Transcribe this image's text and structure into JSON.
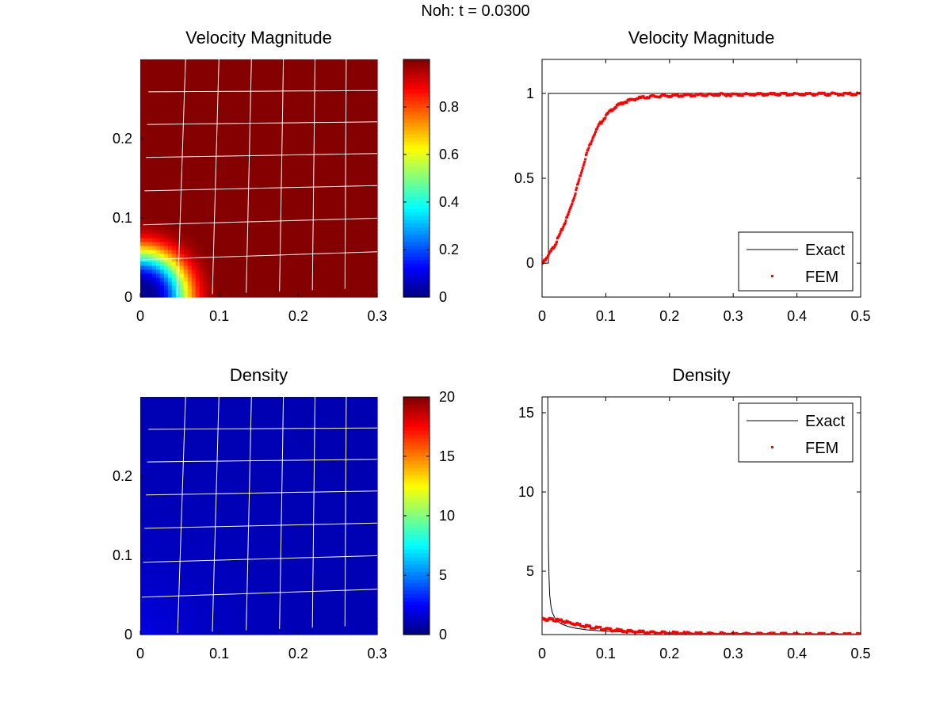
{
  "figure": {
    "suptitle": "Noh: t = 0.0300"
  },
  "colors": {
    "exact_line": "#000000",
    "fem_marker": "#ff0000",
    "mesh": "#ffffff",
    "background": "#ffffff"
  },
  "chart_data": [
    {
      "id": "vel-field",
      "type": "heatmap",
      "title": "Velocity Magnitude",
      "xlabel": "",
      "ylabel": "",
      "xlim": [
        0,
        0.3
      ],
      "ylim": [
        0,
        0.3
      ],
      "xticks": [
        "0",
        "0.1",
        "0.2",
        "0.3"
      ],
      "yticks": [
        "0",
        "0.1",
        "0.2"
      ],
      "colormap": "jet",
      "field": {
        "description_free": true,
        "center": [
          0,
          0
        ],
        "shock_radius": 0.01,
        "low_value": 0.0,
        "high_value": 1.0
      },
      "colorbar": {
        "range": [
          0,
          1
        ],
        "ticks": [
          "0",
          "0.2",
          "0.4",
          "0.6",
          "0.8"
        ]
      }
    },
    {
      "id": "vel-line",
      "type": "line",
      "title": "Velocity Magnitude",
      "xlabel": "",
      "ylabel": "",
      "xlim": [
        0,
        0.5
      ],
      "ylim": [
        -0.2,
        1.2
      ],
      "xticks": [
        "0",
        "0.1",
        "0.2",
        "0.3",
        "0.4",
        "0.5"
      ],
      "yticks": [
        "0",
        "0.5",
        "1"
      ],
      "legend": {
        "position": "bottom-right",
        "entries": [
          "Exact",
          "FEM"
        ]
      },
      "series": [
        {
          "name": "Exact",
          "style": "line",
          "x": [
            0,
            0.01,
            0.01,
            0.5
          ],
          "y": [
            0,
            0,
            1,
            1
          ]
        },
        {
          "name": "FEM",
          "style": "marker",
          "x": [
            0,
            0.01,
            0.02,
            0.03,
            0.04,
            0.05,
            0.06,
            0.07,
            0.08,
            0.09,
            0.1,
            0.11,
            0.12,
            0.13,
            0.14,
            0.15,
            0.17,
            0.2,
            0.25,
            0.3,
            0.35,
            0.4,
            0.45,
            0.5
          ],
          "y": [
            0.0,
            0.05,
            0.11,
            0.19,
            0.28,
            0.39,
            0.52,
            0.65,
            0.75,
            0.82,
            0.87,
            0.91,
            0.935,
            0.955,
            0.965,
            0.975,
            0.985,
            0.99,
            0.995,
            0.997,
            0.998,
            0.999,
            1.0,
            1.0
          ]
        }
      ]
    },
    {
      "id": "dens-field",
      "type": "heatmap",
      "title": "Density",
      "xlabel": "",
      "ylabel": "",
      "xlim": [
        0,
        0.3
      ],
      "ylim": [
        0,
        0.3
      ],
      "xticks": [
        "0",
        "0.1",
        "0.2",
        "0.3"
      ],
      "yticks": [
        "0",
        "0.1",
        "0.2"
      ],
      "colormap": "jet",
      "field": {
        "center": [
          0,
          0
        ],
        "peak_value": 2.0,
        "far_value": 1.0
      },
      "colorbar": {
        "range": [
          0,
          20
        ],
        "ticks": [
          "0",
          "5",
          "10",
          "15",
          "20"
        ]
      }
    },
    {
      "id": "dens-line",
      "type": "line",
      "title": "Density",
      "xlabel": "",
      "ylabel": "",
      "xlim": [
        0,
        0.5
      ],
      "ylim": [
        1,
        16
      ],
      "xticks": [
        "0",
        "0.1",
        "0.2",
        "0.3",
        "0.4",
        "0.5"
      ],
      "yticks": [
        "5",
        "10",
        "15"
      ],
      "legend": {
        "position": "top-right",
        "entries": [
          "Exact",
          "FEM"
        ]
      },
      "series": [
        {
          "name": "Exact",
          "style": "line",
          "x": [
            0.009,
            0.0095,
            0.01,
            0.011,
            0.012,
            0.014,
            0.016,
            0.02,
            0.025,
            0.03,
            0.04,
            0.05,
            0.07,
            0.1,
            0.15,
            0.2,
            0.3,
            0.4,
            0.5
          ],
          "y": [
            16,
            12.0,
            6.5,
            4.6,
            3.5,
            2.75,
            2.4,
            2.05,
            1.82,
            1.68,
            1.52,
            1.42,
            1.3,
            1.21,
            1.14,
            1.1,
            1.07,
            1.05,
            1.04
          ]
        },
        {
          "name": "FEM",
          "style": "marker",
          "x": [
            0,
            0.01,
            0.02,
            0.03,
            0.04,
            0.05,
            0.06,
            0.07,
            0.08,
            0.09,
            0.1,
            0.12,
            0.14,
            0.16,
            0.18,
            0.2,
            0.25,
            0.3,
            0.35,
            0.4,
            0.45,
            0.5
          ],
          "y": [
            2.0,
            2.0,
            1.98,
            1.9,
            1.82,
            1.74,
            1.65,
            1.58,
            1.5,
            1.44,
            1.38,
            1.3,
            1.24,
            1.2,
            1.16,
            1.14,
            1.1,
            1.08,
            1.07,
            1.06,
            1.05,
            1.05
          ]
        }
      ]
    }
  ]
}
